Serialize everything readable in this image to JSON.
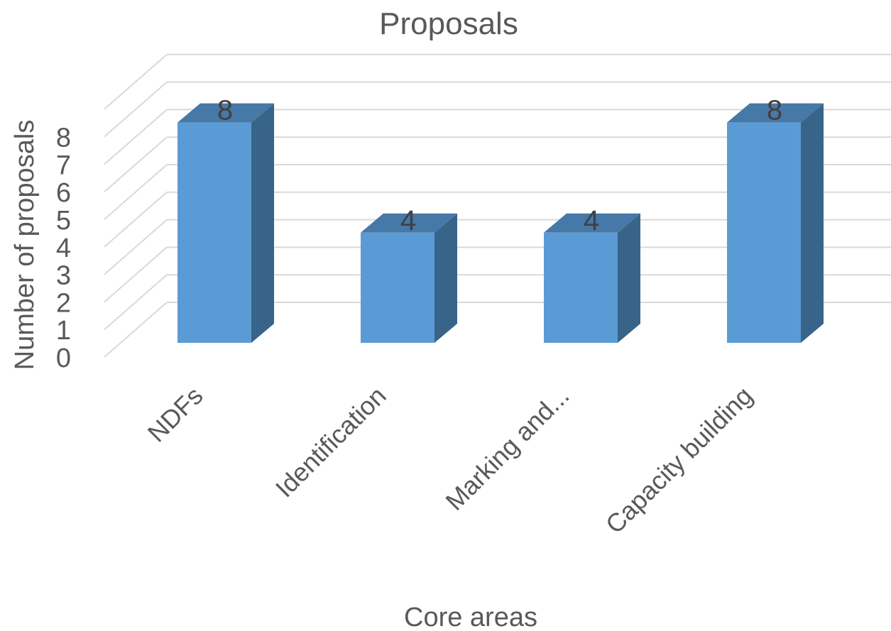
{
  "chart_data": {
    "type": "bar",
    "style": "3d-column",
    "title": "Proposals",
    "xlabel": "Core areas",
    "ylabel": "Number of proposals",
    "categories": [
      "NDFs",
      "Identification",
      "Marking and...",
      "Capacity building"
    ],
    "series": [
      {
        "values": [
          8,
          4,
          4,
          8
        ]
      }
    ],
    "data_labels": [
      "8",
      "4",
      "4",
      "8"
    ],
    "y_ticks": [
      "0",
      "1",
      "2",
      "3",
      "4",
      "5",
      "6",
      "7",
      "8"
    ],
    "ylim": [
      0,
      9
    ],
    "grid": true,
    "legend": "none",
    "colors": {
      "front": "#5b9bd5",
      "top": "#4678a8",
      "side": "#386489",
      "grid": "#d9d9d9",
      "text": "#595959"
    }
  }
}
